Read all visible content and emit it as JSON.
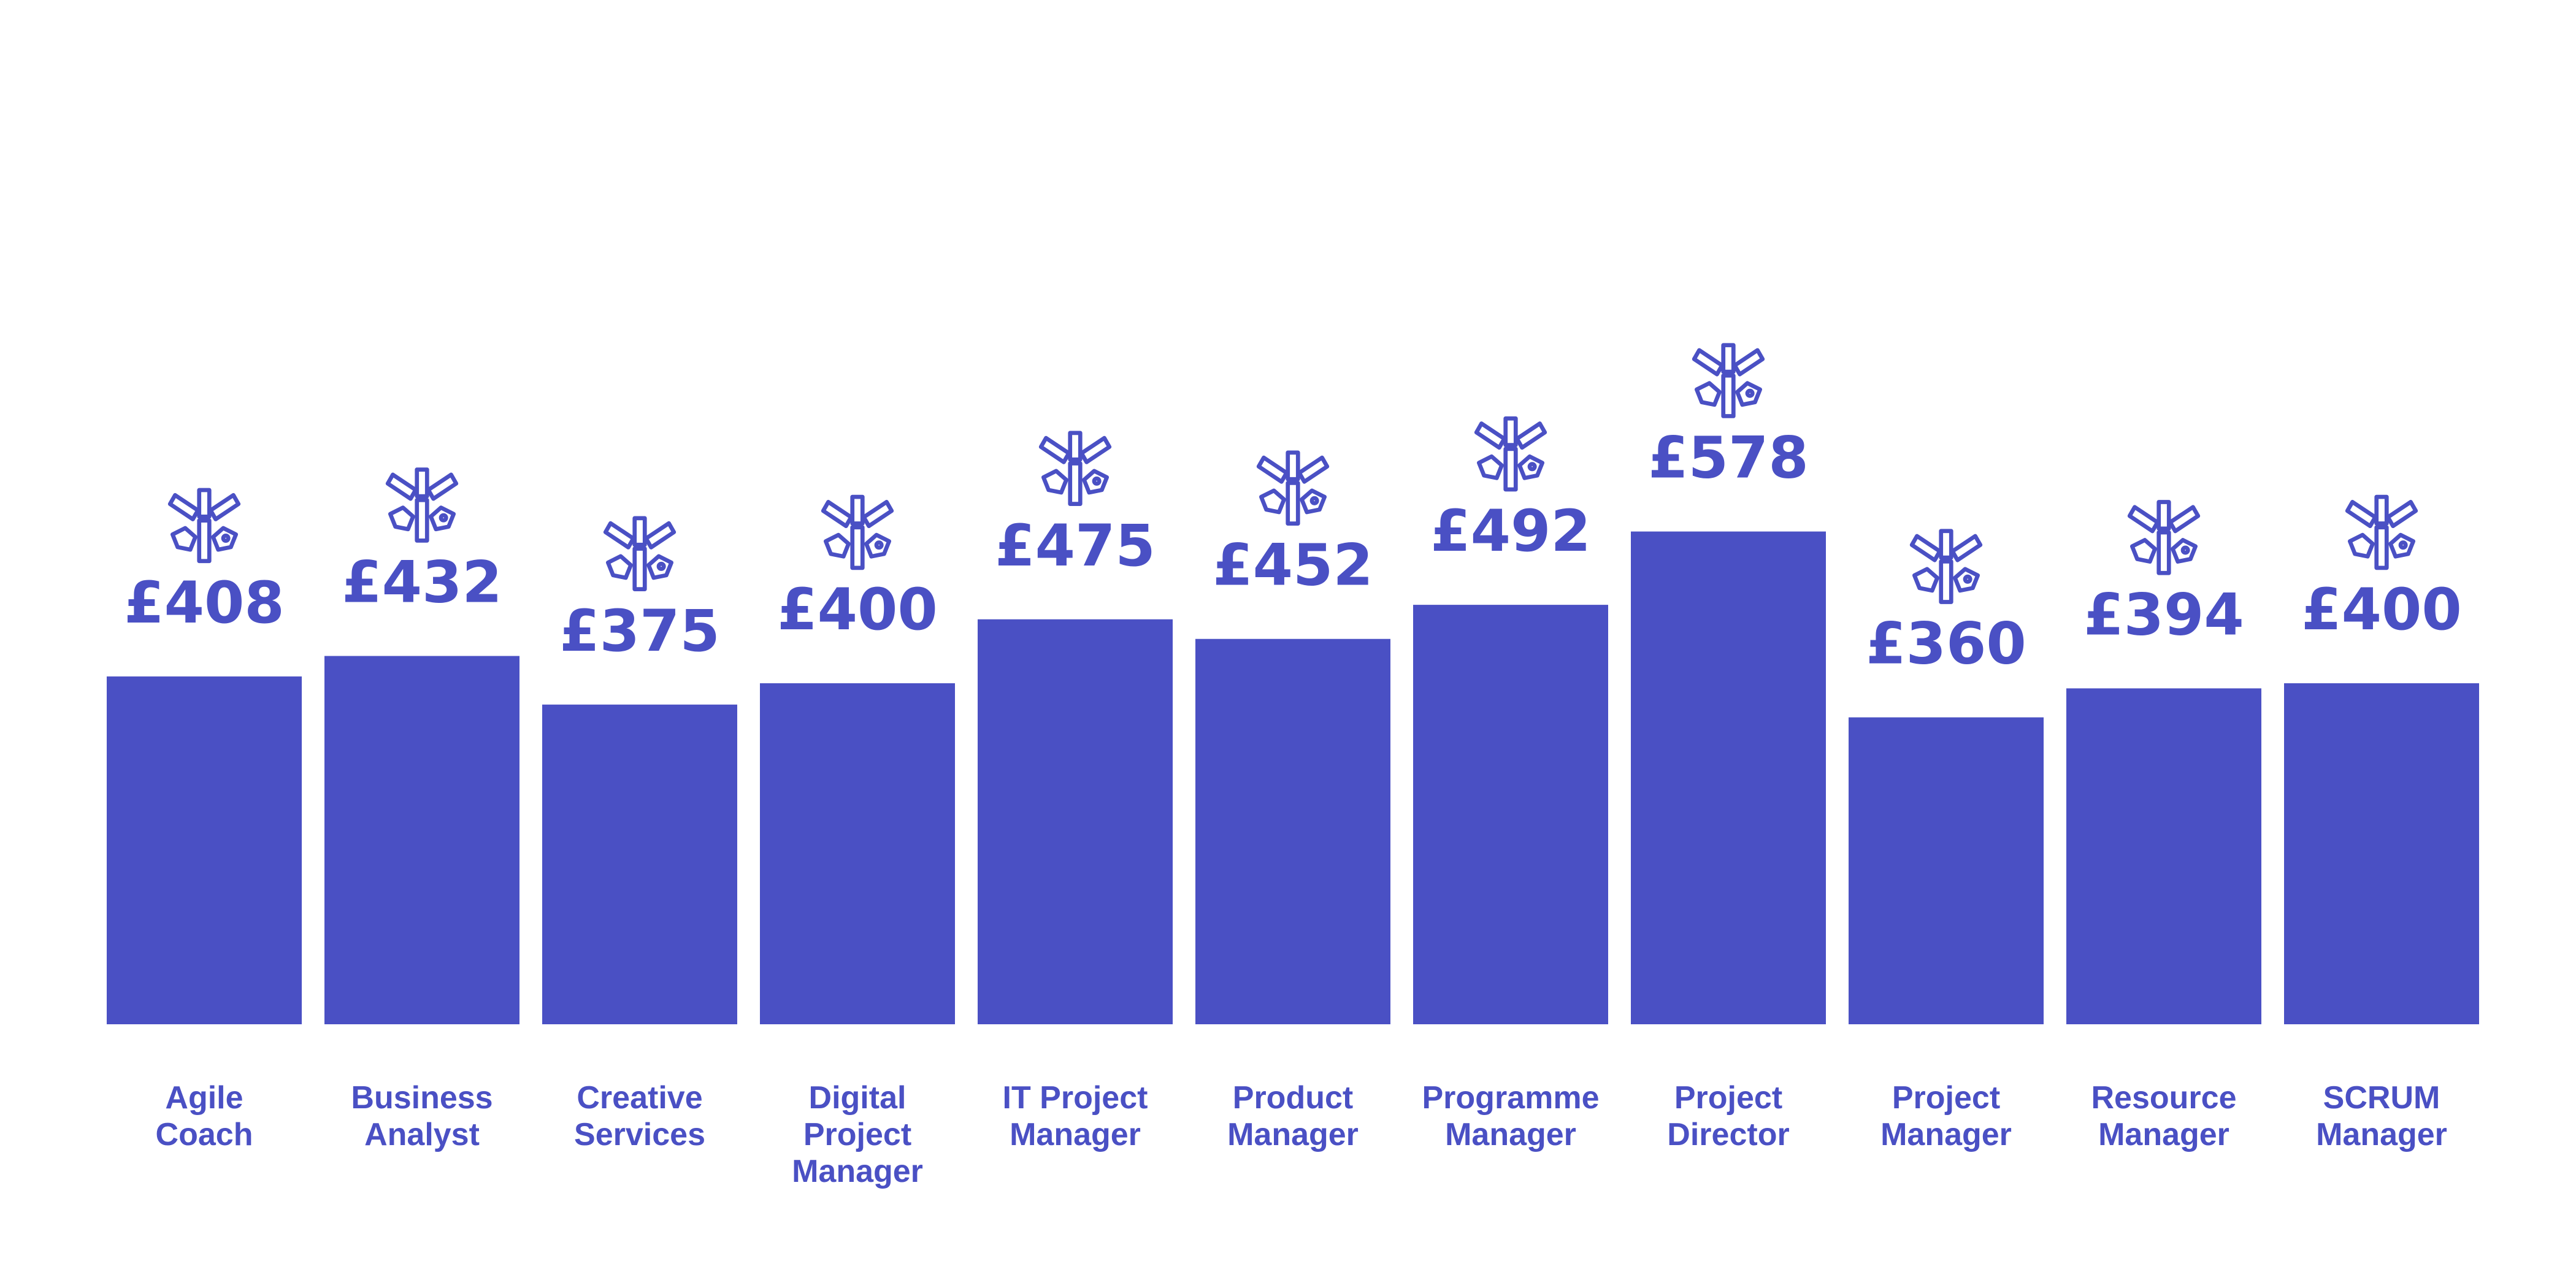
{
  "chart_data": {
    "type": "bar",
    "categories": [
      [
        "Agile",
        "Coach"
      ],
      [
        "Business",
        "Analyst"
      ],
      [
        "Creative",
        "Services"
      ],
      [
        "Digital",
        "Project",
        "Manager"
      ],
      [
        "IT Project",
        "Manager"
      ],
      [
        "Product",
        "Manager"
      ],
      [
        "Programme",
        "Manager"
      ],
      [
        "Project",
        "Director"
      ],
      [
        "Project",
        "Manager"
      ],
      [
        "Resource",
        "Manager"
      ],
      [
        "SCRUM",
        "Manager"
      ]
    ],
    "values": [
      408,
      432,
      375,
      400,
      475,
      452,
      492,
      578,
      360,
      394,
      400
    ],
    "value_labels": [
      "£408",
      "£432",
      "£375",
      "£400",
      "£475",
      "£452",
      "£492",
      "£578",
      "£360",
      "£394",
      "£400"
    ],
    "title": "",
    "xlabel": "",
    "ylabel": "",
    "ylim": [
      0,
      578
    ],
    "grid": false,
    "legend": "none",
    "marker_icon": "asterisk-tag-icon"
  },
  "colors": {
    "bar": "#4a50c4",
    "text": "#4a50c4",
    "icon_stroke": "#4a50c4",
    "background": "#ffffff"
  }
}
